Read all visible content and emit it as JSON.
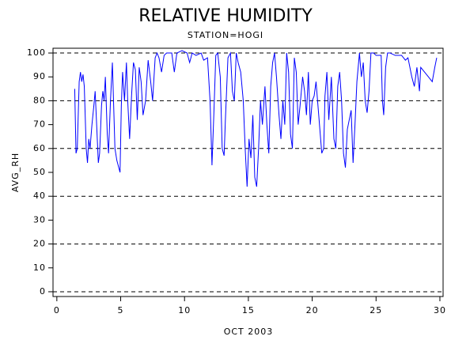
{
  "chart_data": {
    "type": "line",
    "title": "RELATIVE HUMIDITY",
    "subtitle": "STATION=HOGI",
    "xlabel": "OCT 2003",
    "ylabel": "AVG_RH",
    "xlim": [
      -0.3,
      30.25
    ],
    "ylim": [
      -2,
      102
    ],
    "xticks": [
      0,
      5,
      10,
      15,
      20,
      25,
      30
    ],
    "yticks": [
      0,
      10,
      20,
      30,
      40,
      50,
      60,
      70,
      80,
      90,
      100
    ],
    "ygrid": [
      0,
      20,
      40,
      60,
      80,
      100
    ],
    "series": [
      {
        "name": "AVG_RH",
        "color": "#0000ff",
        "x": [
          1.4,
          1.5,
          1.6,
          1.75,
          1.85,
          1.95,
          2.05,
          2.15,
          2.3,
          2.4,
          2.5,
          2.6,
          2.75,
          2.9,
          3.0,
          3.1,
          3.25,
          3.35,
          3.5,
          3.6,
          3.7,
          3.8,
          3.95,
          4.05,
          4.2,
          4.35,
          4.45,
          4.55,
          4.7,
          4.85,
          4.95,
          5.05,
          5.15,
          5.3,
          5.45,
          5.55,
          5.7,
          5.85,
          6.0,
          6.15,
          6.3,
          6.45,
          6.6,
          6.75,
          6.95,
          7.15,
          7.35,
          7.5,
          7.7,
          7.85,
          8.0,
          8.2,
          8.4,
          8.6,
          9.0,
          9.2,
          9.4,
          9.8,
          10.2,
          10.4,
          10.6,
          10.9,
          11.3,
          11.5,
          11.8,
          12.0,
          12.15,
          12.3,
          12.45,
          12.6,
          12.8,
          12.95,
          13.1,
          13.2,
          13.4,
          13.6,
          13.75,
          13.9,
          14.05,
          14.2,
          14.4,
          14.6,
          14.75,
          14.9,
          15.05,
          15.2,
          15.35,
          15.5,
          15.65,
          15.8,
          15.95,
          16.1,
          16.3,
          16.45,
          16.6,
          16.75,
          16.9,
          17.05,
          17.2,
          17.4,
          17.55,
          17.7,
          17.85,
          18.0,
          18.15,
          18.3,
          18.45,
          18.6,
          18.75,
          18.9,
          19.05,
          19.25,
          19.4,
          19.55,
          19.7,
          19.85,
          20.0,
          20.15,
          20.3,
          20.45,
          20.6,
          20.75,
          20.9,
          21.0,
          21.15,
          21.3,
          21.5,
          21.7,
          21.85,
          22.0,
          22.15,
          22.3,
          22.45,
          22.6,
          22.75,
          22.9,
          23.05,
          23.2,
          23.35,
          23.5,
          23.7,
          23.85,
          24.0,
          24.15,
          24.3,
          24.45,
          24.6,
          24.8,
          25.0,
          25.4,
          25.5,
          25.6,
          25.75,
          25.9,
          26.1,
          26.5,
          27.0,
          27.3,
          27.5,
          27.8,
          28.0,
          28.2,
          28.4,
          28.5,
          28.8,
          29.1,
          29.4,
          29.6,
          29.75
        ],
        "values": [
          85,
          58,
          60,
          88,
          92,
          88,
          91,
          86,
          60,
          54,
          64,
          60,
          70,
          78,
          84,
          72,
          54,
          58,
          78,
          84,
          80,
          90,
          66,
          58,
          80,
          96,
          78,
          60,
          55,
          52,
          50,
          78,
          92,
          80,
          96,
          80,
          64,
          82,
          96,
          93,
          72,
          94,
          88,
          74,
          80,
          97,
          88,
          80,
          98,
          100,
          98,
          92,
          99,
          100,
          100,
          92,
          100,
          101,
          100,
          96,
          100,
          99,
          100,
          97,
          98,
          80,
          53,
          75,
          99,
          100,
          90,
          60,
          57,
          72,
          98,
          100,
          84,
          80,
          100,
          96,
          92,
          80,
          60,
          44,
          64,
          56,
          74,
          48,
          44,
          60,
          80,
          70,
          86,
          70,
          58,
          86,
          96,
          100,
          90,
          74,
          64,
          80,
          70,
          100,
          92,
          66,
          60,
          98,
          92,
          70,
          78,
          90,
          84,
          74,
          92,
          70,
          80,
          82,
          88,
          78,
          68,
          58,
          60,
          82,
          92,
          72,
          90,
          64,
          60,
          86,
          92,
          80,
          58,
          52,
          68,
          72,
          76,
          54,
          70,
          88,
          100,
          90,
          96,
          80,
          75,
          84,
          100,
          100,
          99,
          99,
          80,
          74,
          94,
          100,
          100,
          99,
          99,
          97,
          98,
          90,
          86,
          94,
          84,
          94,
          92,
          90,
          88,
          94,
          98
        ]
      }
    ]
  }
}
